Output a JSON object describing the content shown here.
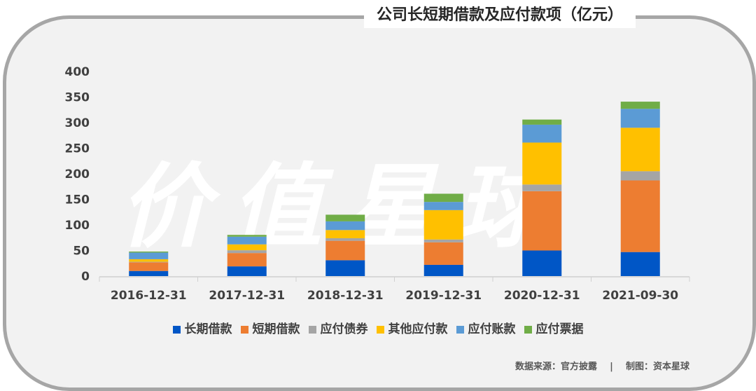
{
  "title": "公司长短期借款及应付款项（亿元）",
  "watermark": "价值星球",
  "footer": {
    "source": "数据来源：官方披露",
    "sep": "|",
    "made_by": "制图：资本星球"
  },
  "chart_data": {
    "type": "bar",
    "stacked": true,
    "title": "公司长短期借款及应付款项（亿元）",
    "categories": [
      "2016-12-31",
      "2017-12-31",
      "2018-12-31",
      "2019-12-31",
      "2020-12-31",
      "2021-09-30"
    ],
    "ylim": [
      0,
      400
    ],
    "yticks": [
      0,
      50,
      100,
      150,
      200,
      250,
      300,
      350,
      400
    ],
    "grid": false,
    "legend": "bottom",
    "series": [
      {
        "name": "长期借款",
        "color": "#0056c6",
        "values": [
          10,
          19,
          31,
          22,
          50,
          47
        ]
      },
      {
        "name": "短期借款",
        "color": "#ed7d31",
        "values": [
          17,
          26,
          38,
          44,
          116,
          140
        ]
      },
      {
        "name": "应付债券",
        "color": "#a5a5a5",
        "values": [
          1,
          5.5,
          5,
          5.5,
          13,
          18
        ]
      },
      {
        "name": "其他应付款",
        "color": "#ffc000",
        "values": [
          5,
          11.5,
          16,
          57.5,
          82,
          85
        ]
      },
      {
        "name": "应付账款",
        "color": "#5b9bd5",
        "values": [
          13,
          15,
          17,
          16,
          35,
          37
        ]
      },
      {
        "name": "应付票据",
        "color": "#70ad47",
        "values": [
          2,
          3.5,
          13,
          16,
          10,
          14
        ]
      }
    ]
  }
}
